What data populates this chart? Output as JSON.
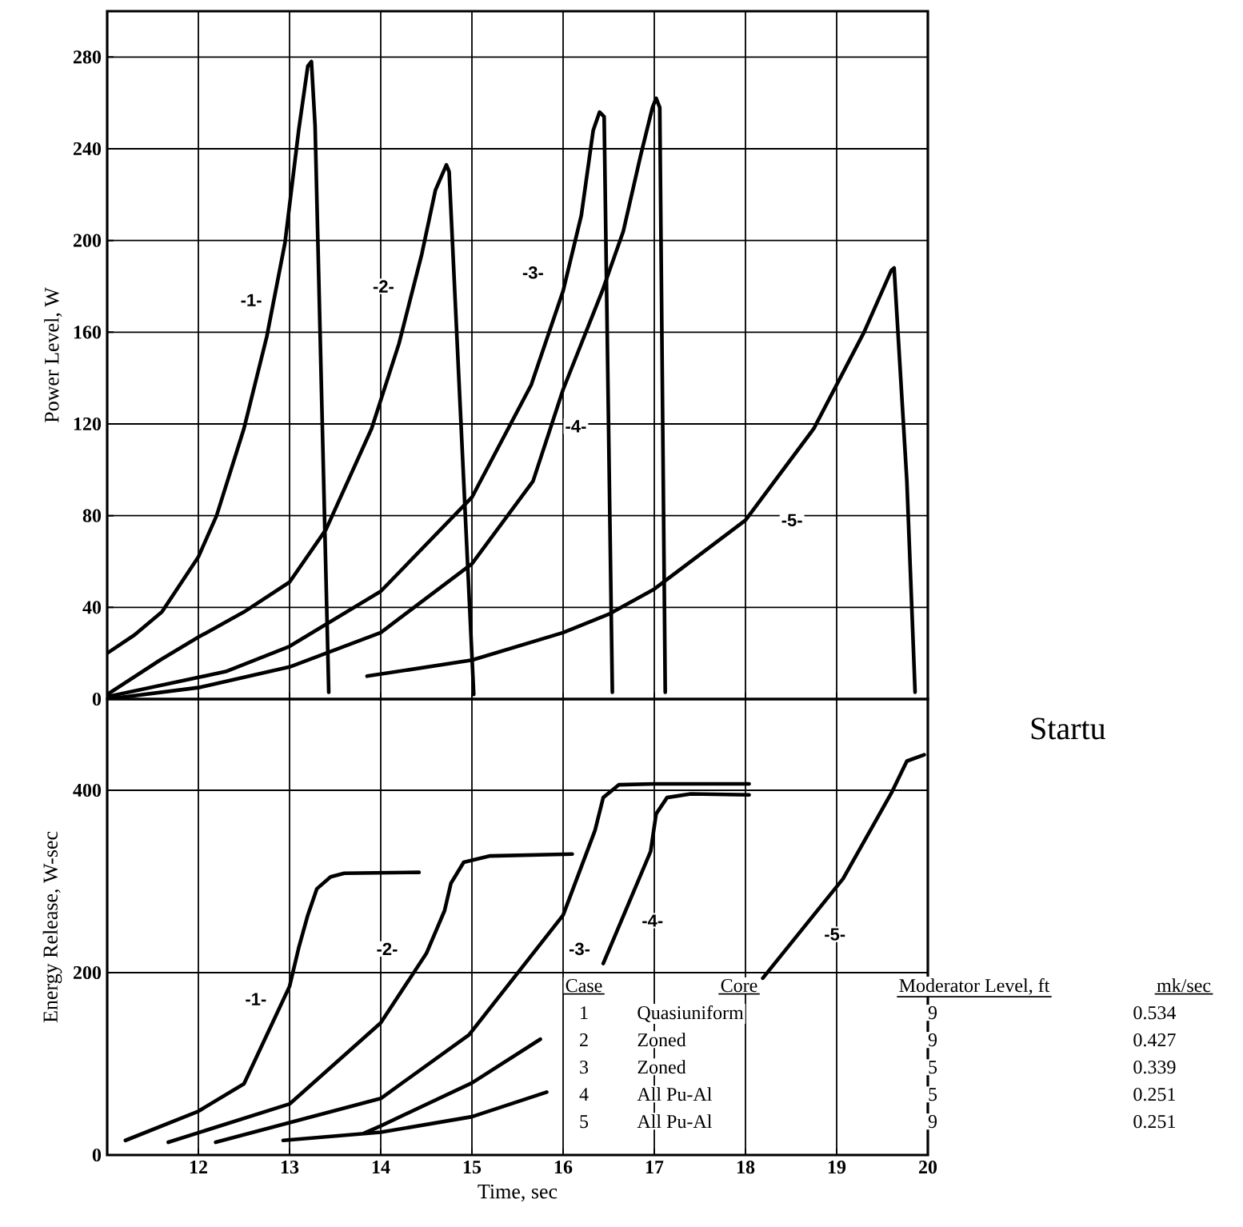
{
  "chart_data": [
    {
      "type": "line",
      "ylabel": "Power Level, W",
      "xlim": [
        11,
        20
      ],
      "xticks": [
        12,
        13,
        14,
        15,
        16,
        17,
        18,
        19,
        20
      ],
      "ylim": [
        0,
        300
      ],
      "yticks": [
        0,
        40,
        80,
        120,
        160,
        200,
        240,
        280
      ],
      "grid": true,
      "tick_labels": "y",
      "series": [
        {
          "color": "#000000",
          "x": [
            11.0,
            11.3,
            11.6,
            12.0,
            12.2,
            12.5,
            12.75,
            12.95,
            13.1,
            13.2,
            13.24,
            13.28,
            13.43
          ],
          "values": [
            20,
            28,
            38,
            62,
            80,
            118,
            158,
            199,
            248,
            276,
            278,
            250,
            3
          ]
        },
        {
          "color": "#000000",
          "x": [
            11.0,
            11.58,
            12.0,
            12.5,
            13.0,
            13.4,
            13.9,
            14.2,
            14.45,
            14.6,
            14.72,
            14.75,
            15.02
          ],
          "values": [
            2,
            17,
            27,
            38,
            51,
            74,
            118,
            155,
            194,
            222,
            233,
            230,
            2
          ]
        },
        {
          "color": "#000000",
          "x": [
            11.0,
            12.3,
            13.0,
            14.0,
            15.0,
            15.65,
            16.0,
            16.2,
            16.33,
            16.4,
            16.45,
            16.54
          ],
          "values": [
            1,
            12,
            23,
            47,
            88,
            137,
            178,
            211,
            248,
            256,
            254,
            3
          ]
        },
        {
          "color": "#000000",
          "x": [
            11.0,
            12.0,
            13.0,
            14.0,
            15.0,
            15.67,
            16.0,
            16.43,
            16.66,
            16.85,
            16.98,
            17.02,
            17.06,
            17.12
          ],
          "values": [
            0,
            5,
            14,
            29,
            59,
            95,
            135,
            178,
            204,
            237,
            258,
            262,
            258,
            3
          ]
        },
        {
          "color": "#000000",
          "x": [
            13.85,
            15.0,
            16.0,
            16.5,
            17.0,
            18.0,
            18.75,
            19.3,
            19.6,
            19.63,
            19.77,
            19.86
          ],
          "values": [
            10,
            17,
            29,
            37,
            48,
            78,
            118,
            160,
            187,
            188,
            95,
            3
          ]
        }
      ],
      "annotations": [
        {
          "text": "-1-",
          "x": 12.58,
          "y": 174
        },
        {
          "text": "-2-",
          "x": 14.03,
          "y": 180
        },
        {
          "text": "-3-",
          "x": 15.67,
          "y": 186
        },
        {
          "text": "-4-",
          "x": 16.14,
          "y": 119
        },
        {
          "text": "-5-",
          "x": 18.51,
          "y": 78
        }
      ]
    },
    {
      "type": "line",
      "xlabel": "Time, sec",
      "ylabel": "Energy Release, W-sec",
      "xlim": [
        11,
        20
      ],
      "xticks": [
        12,
        13,
        14,
        15,
        16,
        17,
        18,
        19,
        20
      ],
      "ylim": [
        0,
        500
      ],
      "yticks": [
        0,
        200,
        400
      ],
      "grid": true,
      "series": [
        {
          "color": "#000000",
          "x": [
            11.2,
            12.0,
            12.5,
            13.0,
            13.1,
            13.2,
            13.3,
            13.45,
            13.6,
            14.42
          ],
          "values": [
            16,
            48,
            78,
            185,
            227,
            263,
            292,
            305,
            309,
            310
          ]
        },
        {
          "color": "#000000",
          "x": [
            11.67,
            13.0,
            14.0,
            14.5,
            14.7,
            14.77,
            14.91,
            15.2,
            16.1
          ],
          "values": [
            14,
            56,
            145,
            221,
            268,
            298,
            321,
            328,
            330
          ]
        },
        {
          "color": "#000000",
          "x": [
            12.19,
            14.0,
            14.97,
            16.0,
            16.35,
            16.44,
            16.61,
            17.0,
            18.04
          ],
          "values": [
            14,
            62,
            132,
            263,
            356,
            392,
            406,
            407,
            407
          ]
        },
        {
          "color": "#000000",
          "x": [
            13.82,
            14.0,
            15.0,
            15.75,
            15.8,
            16.44,
            16.96,
            17.02,
            17.14,
            17.4,
            18.04
          ],
          "values": [
            24,
            32,
            79,
            127,
            null,
            210,
            333,
            374,
            392,
            396,
            395
          ]
        },
        {
          "color": "#000000",
          "x": [
            12.93,
            14.0,
            15.0,
            15.82,
            15.9,
            18.19,
            19.07,
            19.6,
            19.77,
            19.96
          ],
          "values": [
            16,
            25,
            42,
            69,
            null,
            194,
            303,
            397,
            432,
            439
          ]
        }
      ],
      "annotations": [
        {
          "text": "-1-",
          "x": 12.63,
          "y": 171
        },
        {
          "text": "-2-",
          "x": 14.07,
          "y": 226
        },
        {
          "text": "-3-",
          "x": 16.18,
          "y": 226
        },
        {
          "text": "-4-",
          "x": 16.98,
          "y": 257
        },
        {
          "text": "-5-",
          "x": 18.98,
          "y": 242
        },
        "Case",
        "Core",
        "Moderator Level, ft",
        "mk/sec",
        "1",
        "Quasiuniform",
        "9",
        "0.534",
        "2",
        "Zoned",
        "9",
        "0.427",
        "3",
        "Zoned",
        "5",
        "0.339",
        "4",
        "All Pu-Al",
        "5",
        "0.251",
        "5",
        "All Pu-Al",
        "9",
        "0.251",
        "Startu"
      ]
    }
  ]
}
